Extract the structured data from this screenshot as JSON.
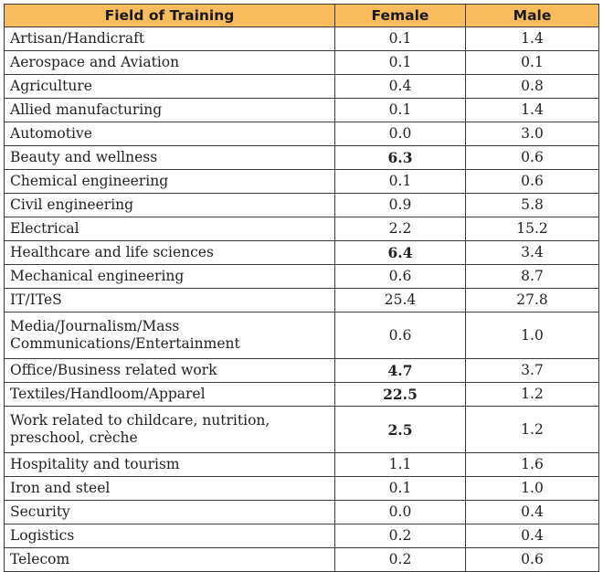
{
  "table": {
    "headers": [
      "Field of Training",
      "Female",
      "Male"
    ],
    "rows": [
      {
        "field": "Artisan/Handicraft",
        "female": "0.1",
        "male": "1.4",
        "female_bold": false
      },
      {
        "field": "Aerospace and Aviation",
        "female": "0.1",
        "male": "0.1",
        "female_bold": false
      },
      {
        "field": "Agriculture",
        "female": "0.4",
        "male": "0.8",
        "female_bold": false
      },
      {
        "field": "Allied manufacturing",
        "female": "0.1",
        "male": "1.4",
        "female_bold": false
      },
      {
        "field": "Automotive",
        "female": "0.0",
        "male": "3.0",
        "female_bold": false
      },
      {
        "field": "Beauty and wellness",
        "female": "6.3",
        "male": "0.6",
        "female_bold": true
      },
      {
        "field": "Chemical engineering",
        "female": "0.1",
        "male": "0.6",
        "female_bold": false
      },
      {
        "field": "Civil engineering",
        "female": "0.9",
        "male": "5.8",
        "female_bold": false
      },
      {
        "field": "Electrical",
        "female": "2.2",
        "male": "15.2",
        "female_bold": false
      },
      {
        "field": "Healthcare and life sciences",
        "female": "6.4",
        "male": "3.4",
        "female_bold": true
      },
      {
        "field": "Mechanical engineering",
        "female": "0.6",
        "male": "8.7",
        "female_bold": false
      },
      {
        "field": "IT/ITeS",
        "female": "25.4",
        "male": "27.8",
        "female_bold": false
      },
      {
        "field": "Media/Journalism/Mass Communications/Entertainment",
        "female": "0.6",
        "male": "1.0",
        "female_bold": false,
        "tall": true
      },
      {
        "field": "Office/Business related work",
        "female": "4.7",
        "male": "3.7",
        "female_bold": true
      },
      {
        "field": "Textiles/Handloom/Apparel",
        "female": "22.5",
        "male": "1.2",
        "female_bold": true
      },
      {
        "field": "Work related to childcare, nutrition, preschool, crèche",
        "female": "2.5",
        "male": "1.2",
        "female_bold": true,
        "tall": true
      },
      {
        "field": "Hospitality and tourism",
        "female": "1.1",
        "male": "1.6",
        "female_bold": false
      },
      {
        "field": "Iron and steel",
        "female": "0.1",
        "male": "1.0",
        "female_bold": false
      },
      {
        "field": "Security",
        "female": "0.0",
        "male": "0.4",
        "female_bold": false
      },
      {
        "field": "Logistics",
        "female": "0.2",
        "male": "0.4",
        "female_bold": false
      },
      {
        "field": "Telecom",
        "female": "0.2",
        "male": "0.6",
        "female_bold": false
      }
    ]
  },
  "colors": {
    "header_background": "#f8bc5c",
    "border": "#3a3a3a",
    "text": "#231f20"
  }
}
